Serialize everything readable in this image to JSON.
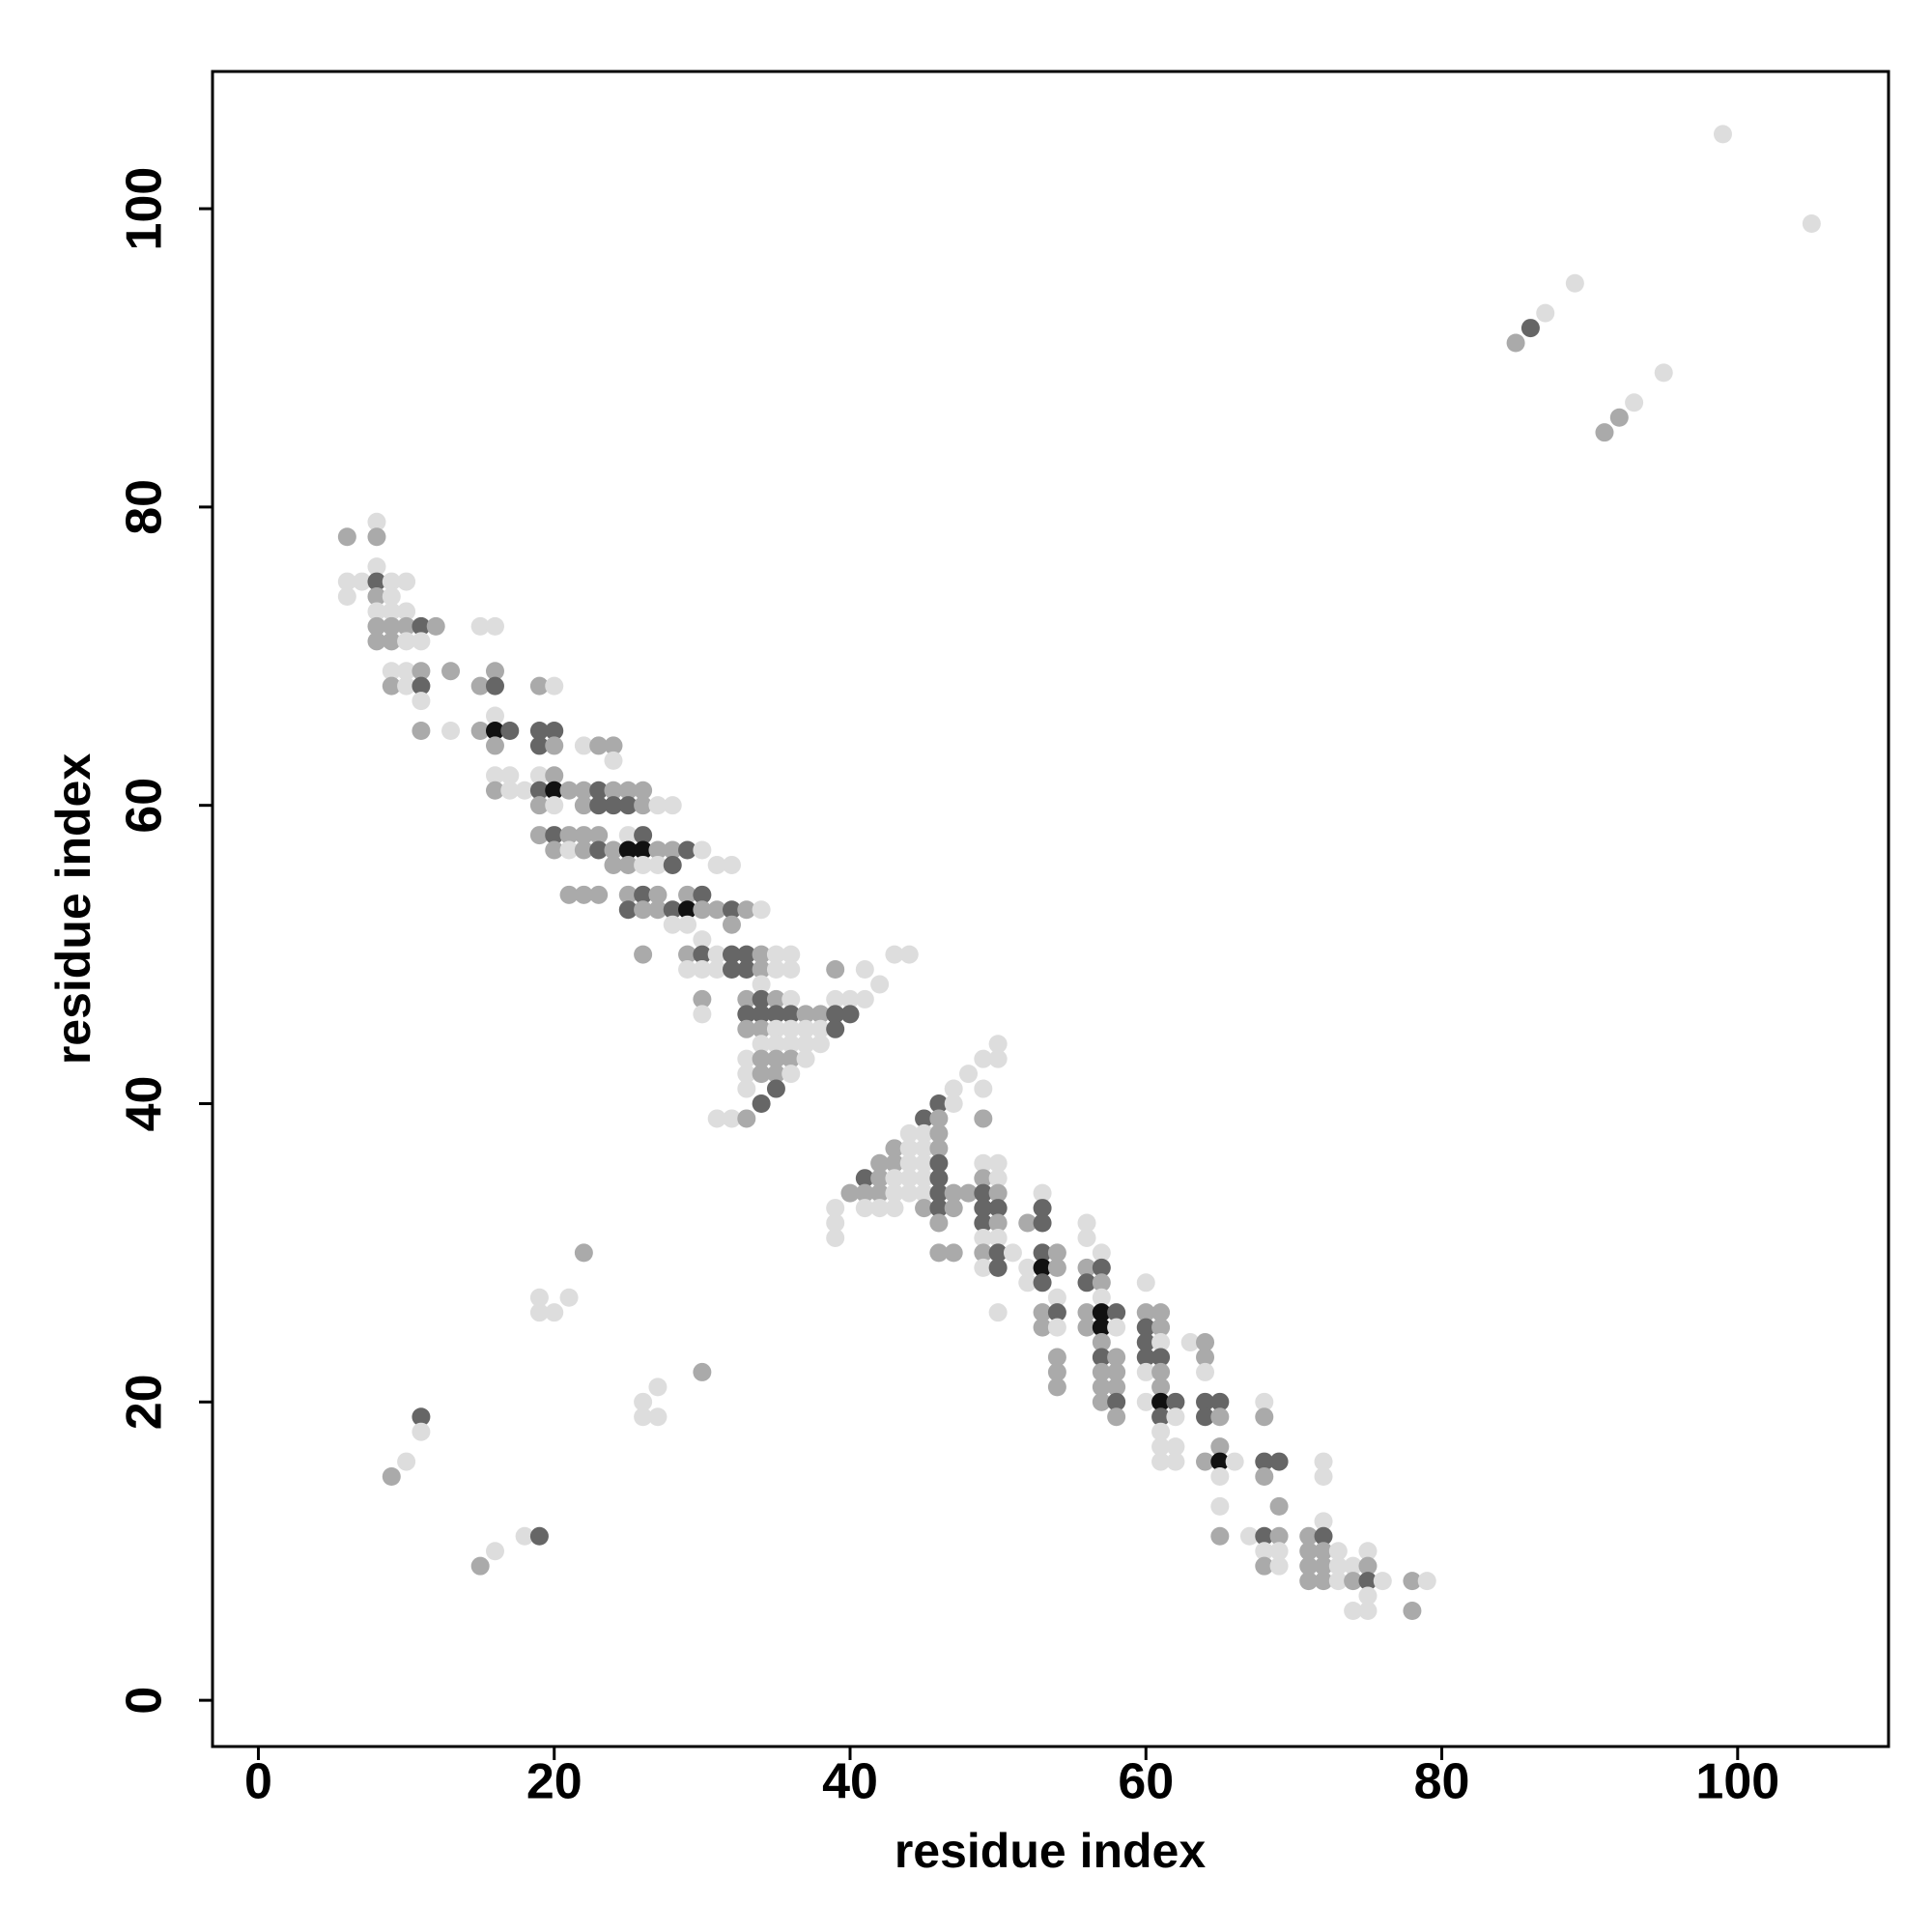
{
  "chart_data": {
    "type": "scatter",
    "xlabel": "residue index",
    "ylabel": "residue index",
    "xlim": [
      -3.1,
      110.2
    ],
    "ylim": [
      -3.1,
      109.2
    ],
    "xticks": [
      0,
      20,
      40,
      60,
      80,
      100
    ],
    "yticks": [
      0,
      20,
      40,
      60,
      80,
      100
    ],
    "x": [
      85,
      86,
      87,
      89,
      91,
      92,
      93,
      95,
      99,
      105,
      9,
      10,
      11,
      11,
      15,
      16,
      18,
      19,
      19,
      19,
      20,
      21,
      22,
      26,
      26,
      27,
      27,
      30,
      8,
      6,
      8,
      8,
      6,
      7,
      8,
      9,
      10,
      6,
      8,
      9,
      8,
      9,
      10,
      8,
      9,
      10,
      11,
      12,
      15,
      16,
      8,
      9,
      10,
      11,
      9,
      10,
      11,
      13,
      16,
      9,
      10,
      11,
      15,
      16,
      19,
      20,
      11,
      16,
      11,
      13,
      15,
      16,
      17,
      19,
      20,
      16,
      19,
      20,
      22,
      23,
      24,
      24,
      16,
      17,
      19,
      20,
      16,
      17,
      18,
      19,
      20,
      21,
      22,
      23,
      24,
      25,
      26,
      19,
      20,
      22,
      23,
      24,
      25,
      26,
      27,
      28,
      19,
      20,
      21,
      22,
      23,
      25,
      26,
      20,
      21,
      22,
      23,
      24,
      25,
      26,
      27,
      28,
      29,
      30,
      24,
      25,
      26,
      27,
      28,
      31,
      32,
      21,
      22,
      23,
      25,
      26,
      27,
      29,
      30,
      25,
      26,
      27,
      28,
      29,
      30,
      31,
      32,
      33,
      34,
      28,
      29,
      32,
      30,
      26,
      29,
      30,
      31,
      32,
      33,
      34,
      35,
      36,
      43,
      44,
      29,
      30,
      31,
      32,
      33,
      34,
      35,
      36,
      39,
      41,
      34,
      42,
      30,
      33,
      34,
      35,
      36,
      39,
      40,
      41,
      30,
      33,
      34,
      35,
      36,
      37,
      38,
      39,
      40,
      33,
      34,
      35,
      36,
      37,
      38,
      39,
      34,
      35,
      36,
      37,
      38,
      33,
      34,
      35,
      36,
      37,
      33,
      34,
      35,
      36,
      33,
      35,
      34,
      31,
      32,
      33,
      50,
      49,
      50,
      48,
      47,
      49,
      46,
      47,
      45,
      46,
      49,
      44,
      45,
      46,
      43,
      44,
      45,
      46,
      42,
      43,
      44,
      45,
      46,
      49,
      50,
      41,
      42,
      43,
      44,
      45,
      46,
      49,
      50,
      40,
      41,
      42,
      43,
      44,
      45,
      46,
      47,
      48,
      49,
      50,
      53,
      39,
      41,
      42,
      43,
      45,
      46,
      47,
      49,
      50,
      53,
      39,
      46,
      49,
      50,
      52,
      53,
      56,
      39,
      49,
      50,
      56,
      46,
      47,
      49,
      50,
      51,
      53,
      54,
      57,
      49,
      50,
      52,
      53,
      54,
      56,
      57,
      52,
      53,
      56,
      57,
      60,
      54,
      57,
      50,
      53,
      54,
      56,
      57,
      58,
      60,
      61,
      53,
      54,
      56,
      57,
      58,
      60,
      61,
      57,
      60,
      61,
      63,
      64,
      54,
      57,
      58,
      60,
      61,
      64,
      54,
      57,
      58,
      60,
      61,
      64,
      54,
      57,
      58,
      61,
      57,
      58,
      60,
      61,
      62,
      64,
      65,
      68,
      58,
      61,
      62,
      64,
      65,
      68,
      61,
      61,
      62,
      65,
      61,
      62,
      64,
      65,
      66,
      68,
      69,
      72,
      65,
      68,
      72,
      65,
      69,
      72,
      65,
      67,
      68,
      69,
      71,
      72,
      68,
      69,
      71,
      72,
      73,
      75,
      68,
      69,
      71,
      72,
      73,
      74,
      75,
      71,
      72,
      73,
      74,
      75,
      76,
      78,
      79,
      75,
      74,
      75,
      78
    ],
    "values": [
      91,
      92,
      93,
      95,
      85,
      86,
      87,
      89,
      105,
      99,
      15,
      16,
      19,
      18,
      9,
      10,
      11,
      11,
      27,
      26,
      26,
      27,
      30,
      20,
      19,
      21,
      19,
      22,
      79,
      78,
      78,
      76,
      75,
      75,
      75,
      75,
      75,
      74,
      74,
      74,
      73,
      73,
      73,
      72,
      72,
      72,
      72,
      72,
      72,
      72,
      71,
      71,
      71,
      71,
      69,
      69,
      69,
      69,
      69,
      68,
      68,
      68,
      68,
      68,
      68,
      68,
      67,
      66,
      65,
      65,
      65,
      65,
      65,
      65,
      65,
      64,
      64,
      64,
      64,
      64,
      64,
      63,
      62,
      62,
      62,
      62,
      61,
      61,
      61,
      61,
      61,
      61,
      61,
      61,
      61,
      61,
      61,
      60,
      60,
      60,
      60,
      60,
      60,
      60,
      60,
      60,
      58,
      58,
      58,
      58,
      58,
      58,
      58,
      57,
      57,
      57,
      57,
      57,
      57,
      57,
      57,
      57,
      57,
      57,
      56,
      56,
      56,
      56,
      56,
      56,
      56,
      54,
      54,
      54,
      54,
      54,
      54,
      54,
      54,
      53,
      53,
      53,
      53,
      53,
      53,
      53,
      53,
      53,
      53,
      52,
      52,
      52,
      51,
      50,
      50,
      50,
      50,
      50,
      50,
      50,
      50,
      50,
      50,
      50,
      49,
      49,
      49,
      49,
      49,
      49,
      49,
      49,
      49,
      49,
      48,
      48,
      47,
      47,
      47,
      47,
      47,
      47,
      47,
      47,
      46,
      46,
      46,
      46,
      46,
      46,
      46,
      46,
      46,
      45,
      45,
      45,
      45,
      45,
      45,
      45,
      44,
      44,
      44,
      44,
      44,
      43,
      43,
      43,
      43,
      43,
      42,
      42,
      42,
      42,
      41,
      41,
      40,
      39,
      39,
      39,
      44,
      43,
      43,
      42,
      41,
      41,
      40,
      40,
      39,
      39,
      39,
      38,
      38,
      38,
      37,
      37,
      37,
      37,
      36,
      36,
      36,
      36,
      36,
      36,
      36,
      35,
      35,
      35,
      35,
      35,
      35,
      35,
      35,
      34,
      34,
      34,
      34,
      34,
      34,
      34,
      34,
      34,
      34,
      34,
      34,
      33,
      33,
      33,
      33,
      33,
      33,
      33,
      33,
      33,
      33,
      32,
      32,
      32,
      32,
      32,
      32,
      32,
      31,
      31,
      31,
      31,
      30,
      30,
      30,
      30,
      30,
      30,
      30,
      30,
      29,
      29,
      29,
      29,
      29,
      29,
      29,
      28,
      28,
      28,
      28,
      28,
      27,
      27,
      26,
      26,
      26,
      26,
      26,
      26,
      26,
      26,
      25,
      25,
      25,
      25,
      25,
      25,
      25,
      24,
      24,
      24,
      24,
      24,
      23,
      23,
      23,
      23,
      23,
      23,
      22,
      22,
      22,
      22,
      22,
      22,
      21,
      21,
      21,
      21,
      20,
      20,
      20,
      20,
      20,
      20,
      20,
      20,
      19,
      19,
      19,
      19,
      19,
      19,
      18,
      17,
      17,
      17,
      16,
      16,
      16,
      16,
      16,
      16,
      16,
      16,
      15,
      15,
      15,
      13,
      13,
      12,
      11,
      11,
      11,
      11,
      11,
      11,
      10,
      10,
      10,
      10,
      10,
      10,
      9,
      9,
      9,
      9,
      9,
      9,
      9,
      8,
      8,
      8,
      8,
      8,
      8,
      8,
      8,
      7,
      6,
      6,
      6
    ],
    "colors": [
      "#aaa",
      "#666",
      "#ddd",
      "#ddd",
      "#aaa",
      "#aaa",
      "#ddd",
      "#ddd",
      "#ddd",
      "#ddd",
      "#aaa",
      "#ddd",
      "#666",
      "#ddd",
      "#aaa",
      "#ddd",
      "#ddd",
      "#666",
      "#ddd",
      "#ddd",
      "#ddd",
      "#ddd",
      "#aaa",
      "#ddd",
      "#ddd",
      "#ddd",
      "#ddd",
      "#aaa",
      "#ddd",
      "#aaa",
      "#aaa",
      "#ddd",
      "#ddd",
      "#ddd",
      "#666",
      "#ddd",
      "#ddd",
      "#ddd",
      "#aaa",
      "#ddd",
      "#ddd",
      "#ddd",
      "#ddd",
      "#aaa",
      "#aaa",
      "#aaa",
      "#666",
      "#aaa",
      "#ddd",
      "#ddd",
      "#aaa",
      "#aaa",
      "#ddd",
      "#ddd",
      "#ddd",
      "#ddd",
      "#aaa",
      "#aaa",
      "#aaa",
      "#aaa",
      "#ddd",
      "#666",
      "#aaa",
      "#666",
      "#aaa",
      "#ddd",
      "#ddd",
      "#ddd",
      "#aaa",
      "#ddd",
      "#aaa",
      "#111",
      "#666",
      "#666",
      "#666",
      "#aaa",
      "#666",
      "#aaa",
      "#ddd",
      "#aaa",
      "#aaa",
      "#ddd",
      "#ddd",
      "#ddd",
      "#ddd",
      "#aaa",
      "#aaa",
      "#ddd",
      "#ddd",
      "#666",
      "#111",
      "#aaa",
      "#aaa",
      "#666",
      "#aaa",
      "#aaa",
      "#aaa",
      "#aaa",
      "#ddd",
      "#aaa",
      "#666",
      "#666",
      "#666",
      "#aaa",
      "#ddd",
      "#ddd",
      "#aaa",
      "#666",
      "#aaa",
      "#aaa",
      "#aaa",
      "#ddd",
      "#666",
      "#aaa",
      "#ddd",
      "#aaa",
      "#666",
      "#aaa",
      "#111",
      "#111",
      "#aaa",
      "#aaa",
      "#666",
      "#ddd",
      "#aaa",
      "#aaa",
      "#ddd",
      "#ddd",
      "#666",
      "#ddd",
      "#ddd",
      "#aaa",
      "#aaa",
      "#aaa",
      "#aaa",
      "#666",
      "#aaa",
      "#aaa",
      "#666",
      "#666",
      "#aaa",
      "#aaa",
      "#666",
      "#111",
      "#aaa",
      "#aaa",
      "#666",
      "#aaa",
      "#ddd",
      "#ddd",
      "#ddd",
      "#aaa",
      "#ddd",
      "#aaa",
      "#aaa",
      "#666",
      "#ddd",
      "#666",
      "#666",
      "#aaa",
      "#ddd",
      "#ddd",
      "#ddd",
      "#ddd",
      "#ddd",
      "#ddd",
      "#ddd",
      "#666",
      "#666",
      "#aaa",
      "#ddd",
      "#ddd",
      "#aaa",
      "#ddd",
      "#ddd",
      "#ddd",
      "#aaa",
      "#aaa",
      "#666",
      "#aaa",
      "#ddd",
      "#ddd",
      "#ddd",
      "#ddd",
      "#ddd",
      "#666",
      "#666",
      "#666",
      "#666",
      "#aaa",
      "#aaa",
      "#666",
      "#666",
      "#aaa",
      "#aaa",
      "#ddd",
      "#ddd",
      "#ddd",
      "#ddd",
      "#666",
      "#ddd",
      "#ddd",
      "#ddd",
      "#ddd",
      "#ddd",
      "#ddd",
      "#aaa",
      "#aaa",
      "#aaa",
      "#ddd",
      "#ddd",
      "#aaa",
      "#aaa",
      "#ddd",
      "#ddd",
      "#666",
      "#666",
      "#ddd",
      "#ddd",
      "#aaa",
      "#ddd",
      "#ddd",
      "#ddd",
      "#ddd",
      "#ddd",
      "#ddd",
      "#666",
      "#ddd",
      "#666",
      "#aaa",
      "#aaa",
      "#ddd",
      "#ddd",
      "#aaa",
      "#aaa",
      "#ddd",
      "#ddd",
      "#aaa",
      "#aaa",
      "#aaa",
      "#ddd",
      "#ddd",
      "#666",
      "#ddd",
      "#ddd",
      "#666",
      "#aaa",
      "#ddd",
      "#ddd",
      "#ddd",
      "#666",
      "#aaa",
      "#ddd",
      "#aaa",
      "#aaa",
      "#aaa",
      "#ddd",
      "#ddd",
      "#ddd",
      "#666",
      "#aaa",
      "#aaa",
      "#666",
      "#aaa",
      "#ddd",
      "#ddd",
      "#ddd",
      "#ddd",
      "#ddd",
      "#aaa",
      "#666",
      "#aaa",
      "#666",
      "#666",
      "#666",
      "#ddd",
      "#aaa",
      "#666",
      "#aaa",
      "#aaa",
      "#666",
      "#ddd",
      "#ddd",
      "#ddd",
      "#ddd",
      "#ddd",
      "#aaa",
      "#aaa",
      "#aaa",
      "#666",
      "#ddd",
      "#666",
      "#aaa",
      "#ddd",
      "#ddd",
      "#666",
      "#ddd",
      "#111",
      "#aaa",
      "#aaa",
      "#666",
      "#ddd",
      "#666",
      "#666",
      "#aaa",
      "#ddd",
      "#ddd",
      "#ddd",
      "#ddd",
      "#aaa",
      "#666",
      "#aaa",
      "#111",
      "#666",
      "#aaa",
      "#aaa",
      "#aaa",
      "#ddd",
      "#aaa",
      "#111",
      "#ddd",
      "#666",
      "#aaa",
      "#aaa",
      "#666",
      "#ddd",
      "#ddd",
      "#aaa",
      "#aaa",
      "#666",
      "#aaa",
      "#666",
      "#666",
      "#aaa",
      "#aaa",
      "#aaa",
      "#aaa",
      "#ddd",
      "#aaa",
      "#ddd",
      "#aaa",
      "#aaa",
      "#aaa",
      "#aaa",
      "#aaa",
      "#666",
      "#ddd",
      "#111",
      "#666",
      "#666",
      "#666",
      "#ddd",
      "#aaa",
      "#666",
      "#ddd",
      "#666",
      "#aaa",
      "#aaa",
      "#ddd",
      "#ddd",
      "#ddd",
      "#aaa",
      "#ddd",
      "#ddd",
      "#aaa",
      "#111",
      "#ddd",
      "#666",
      "#666",
      "#ddd",
      "#ddd",
      "#aaa",
      "#ddd",
      "#ddd",
      "#aaa",
      "#ddd",
      "#aaa",
      "#ddd",
      "#666",
      "#aaa",
      "#aaa",
      "#666",
      "#ddd",
      "#ddd",
      "#aaa",
      "#aaa",
      "#ddd",
      "#ddd",
      "#aaa",
      "#ddd",
      "#aaa",
      "#aaa",
      "#ddd",
      "#ddd",
      "#aaa",
      "#aaa",
      "#aaa",
      "#ddd",
      "#aaa",
      "#666",
      "#ddd",
      "#aaa",
      "#ddd",
      "#ddd",
      "#ddd",
      "#ddd",
      "#aaa"
    ]
  }
}
